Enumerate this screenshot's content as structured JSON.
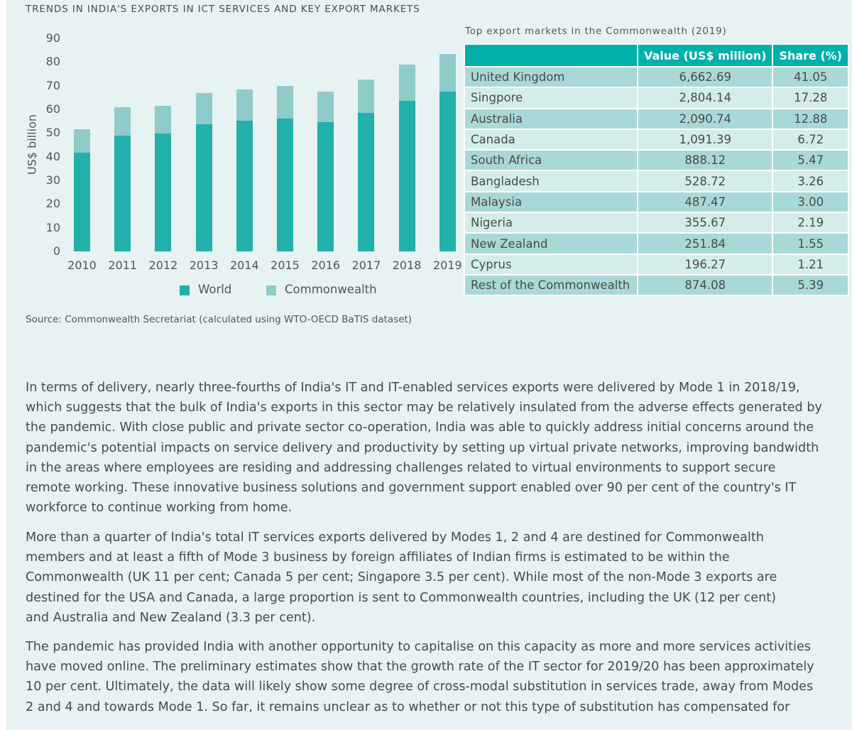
{
  "figure_title": "TRENDS IN INDIA'S EXPORTS IN ICT SERVICES AND KEY EXPORT MARKETS",
  "chart_data": {
    "type": "bar",
    "stacked": true,
    "categories": [
      "2010",
      "2011",
      "2012",
      "2013",
      "2014",
      "2015",
      "2016",
      "2017",
      "2018",
      "2019"
    ],
    "series": [
      {
        "name": "World",
        "color": "#22b0aa",
        "values": [
          41.7,
          49.0,
          49.8,
          53.8,
          55.3,
          56.2,
          54.6,
          58.4,
          63.5,
          67.4
        ]
      },
      {
        "name": "Commonwealth",
        "color": "#8ecbc9",
        "values": [
          9.8,
          11.9,
          11.8,
          13.0,
          13.2,
          13.6,
          13.0,
          14.2,
          15.5,
          16.1
        ]
      }
    ],
    "ylabel": "US$ billion",
    "xlabel": "",
    "ylim": [
      0,
      90
    ],
    "yticks": [
      "0",
      "10",
      "20",
      "30",
      "40",
      "50",
      "60",
      "70",
      "80",
      "90"
    ],
    "grid": false,
    "legend": "bottom"
  },
  "table": {
    "caption": "Top export markets in the Commonwealth (2019)",
    "headers": [
      "",
      "Value (US$ million)",
      "Share (%)"
    ],
    "header_color": "#00b0aa",
    "rows": [
      [
        "United Kingdom",
        "6,662.69",
        "41.05"
      ],
      [
        "Singpore",
        "2,804.14",
        "17.28"
      ],
      [
        "Australia",
        "2,090.74",
        "12.88"
      ],
      [
        "Canada",
        "1,091.39",
        "6.72"
      ],
      [
        "South Africa",
        "888.12",
        "5.47"
      ],
      [
        "Bangladesh",
        "528.72",
        "3.26"
      ],
      [
        "Malaysia",
        "487.47",
        "3.00"
      ],
      [
        "Nigeria",
        "355.67",
        "2.19"
      ],
      [
        "New Zealand",
        "251.84",
        "1.55"
      ],
      [
        "Cyprus",
        "196.27",
        "1.21"
      ],
      [
        "Rest of the Commonwealth",
        "874.08",
        "5.39"
      ]
    ]
  },
  "source": "Source: Commonwealth Secretariat (calculated using WTO-OECD BaTIS dataset)",
  "paragraphs": [
    [
      "In terms of delivery, nearly three-fourths of India's IT and IT-enabled services exports were delivered by Mode 1 in 2018/19,",
      "which suggests that the bulk of India's exports in this sector may be relatively insulated from the adverse effects generated by",
      "the pandemic. With close public and private sector co-operation, India was able to quickly address initial concerns around the",
      "pandemic's potential impacts on service delivery and productivity by setting up virtual private networks, improving bandwidth",
      "in the areas where employees are residing and addressing challenges related to virtual environments to support secure",
      "remote working. These innovative business solutions and government support enabled over 90 per cent of the country's IT",
      "workforce to continue working from home."
    ],
    [
      "More than a quarter of India's total IT services exports delivered by Modes 1, 2 and 4 are destined for Commonwealth",
      "members and at least a fifth of Mode 3 business by foreign affiliates of Indian firms is estimated to be within the",
      "Commonwealth (UK 11 per cent; Canada 5 per cent; Singapore 3.5 per cent). While most of the non-Mode 3 exports are",
      "destined for the USA and Canada, a large proportion is sent to Commonwealth countries, including the UK (12 per cent)",
      "and Australia and New Zealand (3.3 per cent)."
    ],
    [
      "The pandemic has provided India with another opportunity to capitalise on this capacity as more and more services activities",
      "have moved online.  The preliminary estimates show that the growth rate of the IT sector for 2019/20 has been approximately",
      "10 per cent. Ultimately, the data will likely show some degree of cross-modal substitution in services trade, away from Modes",
      "2 and 4 and towards Mode 1. So far, it remains unclear as to whether or not this type of substitution has compensated for"
    ]
  ]
}
